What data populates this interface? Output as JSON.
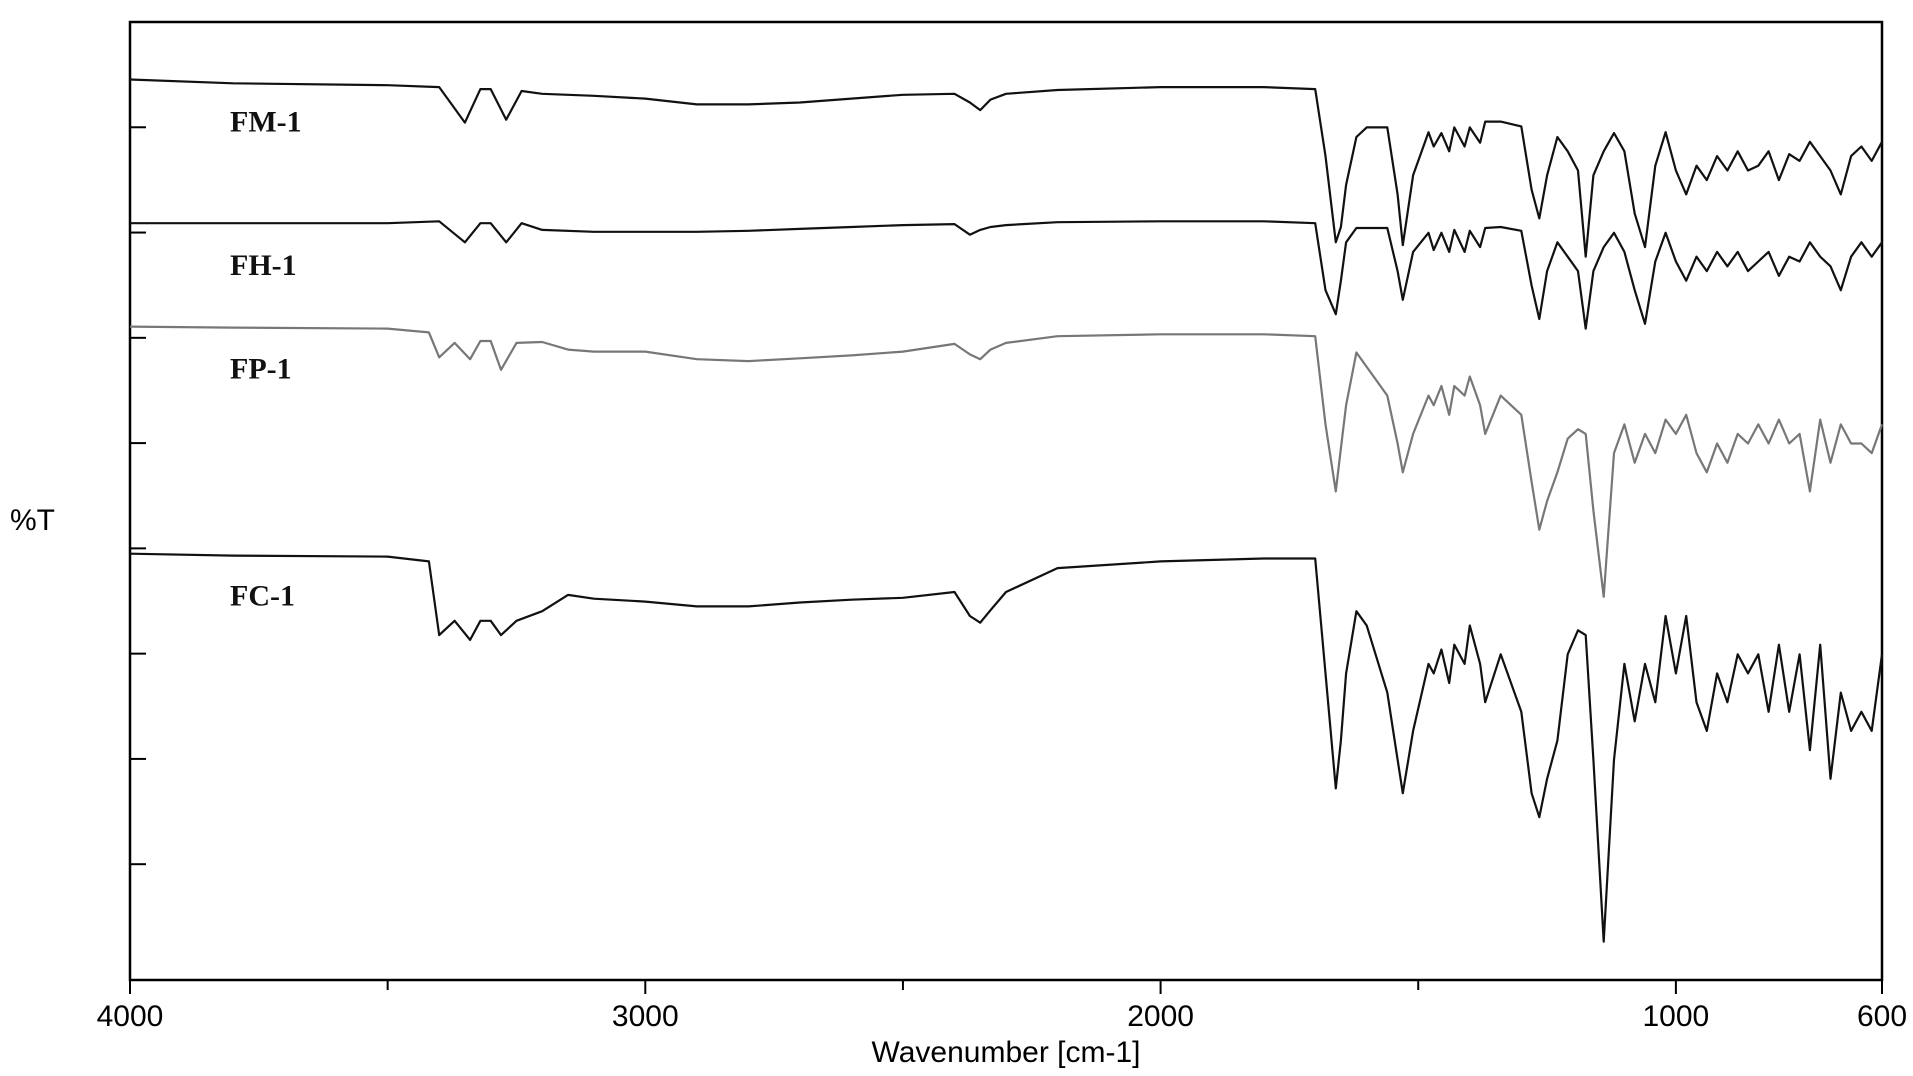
{
  "chart_data": {
    "type": "line",
    "title": "",
    "xlabel": "Wavenumber [cm-1]",
    "ylabel": "%T",
    "xlim": [
      4000,
      600
    ],
    "x_reversed": true,
    "xticks": [
      4000,
      3000,
      2000,
      1000,
      600
    ],
    "x_minor_ticks": [
      3500,
      2500,
      1500
    ],
    "y_scale": "arbitrary, stacked (offset) spectra",
    "ylim": [
      0,
      100
    ],
    "grid": false,
    "series": [
      {
        "name": "FM-1",
        "color": "#111111",
        "x": [
          4000,
          3800,
          3500,
          3400,
          3350,
          3320,
          3300,
          3270,
          3240,
          3200,
          3100,
          3000,
          2900,
          2800,
          2700,
          2600,
          2500,
          2400,
          2370,
          2350,
          2330,
          2300,
          2200,
          2000,
          1800,
          1700,
          1680,
          1660,
          1650,
          1640,
          1620,
          1600,
          1560,
          1540,
          1530,
          1510,
          1480,
          1470,
          1455,
          1440,
          1430,
          1410,
          1400,
          1380,
          1370,
          1340,
          1300,
          1280,
          1265,
          1250,
          1230,
          1210,
          1190,
          1175,
          1160,
          1140,
          1120,
          1100,
          1080,
          1060,
          1040,
          1020,
          1000,
          980,
          960,
          940,
          920,
          900,
          880,
          860,
          840,
          820,
          800,
          780,
          760,
          740,
          720,
          700,
          680,
          660,
          640,
          620,
          600
        ],
        "y": [
          94,
          93.6,
          93.4,
          93.2,
          89.5,
          93,
          93,
          89.8,
          92.8,
          92.5,
          92.3,
          92,
          91.4,
          91.4,
          91.6,
          92,
          92.4,
          92.5,
          91.6,
          90.8,
          91.9,
          92.5,
          92.9,
          93.2,
          93.2,
          93,
          86,
          77,
          78.6,
          83,
          88,
          89,
          89,
          82,
          76.7,
          84,
          88.5,
          87,
          88.4,
          86.5,
          89,
          87,
          89,
          87.4,
          89.6,
          89.6,
          89.1,
          82.5,
          79.5,
          84,
          88,
          86.5,
          84.5,
          75.5,
          84,
          86.5,
          88.4,
          86.5,
          80,
          76.5,
          85,
          88.5,
          84.5,
          82,
          85,
          83.5,
          86,
          84.5,
          86.5,
          84.5,
          85,
          86.5,
          83.5,
          86.2,
          85.5,
          87.5,
          86,
          84.5,
          82,
          86,
          87,
          85.5,
          87.5
        ]
      },
      {
        "name": "FH-1",
        "color": "#111111",
        "x": [
          4000,
          3800,
          3500,
          3400,
          3350,
          3320,
          3300,
          3270,
          3240,
          3200,
          3100,
          3000,
          2900,
          2800,
          2700,
          2600,
          2500,
          2400,
          2370,
          2350,
          2330,
          2300,
          2200,
          2000,
          1800,
          1700,
          1680,
          1660,
          1650,
          1640,
          1620,
          1600,
          1560,
          1540,
          1530,
          1510,
          1480,
          1470,
          1455,
          1440,
          1430,
          1410,
          1400,
          1380,
          1370,
          1340,
          1300,
          1280,
          1265,
          1250,
          1230,
          1210,
          1190,
          1175,
          1160,
          1140,
          1120,
          1100,
          1080,
          1060,
          1040,
          1020,
          1000,
          980,
          960,
          940,
          920,
          900,
          880,
          860,
          840,
          820,
          800,
          780,
          760,
          740,
          720,
          700,
          680,
          660,
          640,
          620,
          600
        ],
        "y": [
          79,
          79,
          79,
          79.2,
          77,
          79,
          79,
          77,
          79,
          78.3,
          78.1,
          78.1,
          78.1,
          78.2,
          78.4,
          78.6,
          78.8,
          78.9,
          77.8,
          78.3,
          78.6,
          78.8,
          79.1,
          79.2,
          79.2,
          79,
          72,
          69.5,
          73,
          77,
          78.5,
          78.5,
          78.5,
          74,
          71,
          76,
          78,
          76.2,
          78,
          76,
          78.3,
          76,
          78.2,
          76.5,
          78.5,
          78.6,
          78.2,
          72.5,
          69,
          74,
          77,
          75.5,
          74,
          68,
          74,
          76.5,
          78,
          76,
          72,
          68.5,
          75,
          78,
          75,
          73,
          75.5,
          74,
          76,
          74.5,
          76,
          74,
          75,
          76,
          73.5,
          75.5,
          75,
          77,
          75.5,
          74.5,
          72,
          75.5,
          77,
          75.5,
          77
        ]
      },
      {
        "name": "FP-1",
        "color": "#777777",
        "x": [
          4000,
          3800,
          3500,
          3420,
          3400,
          3370,
          3340,
          3320,
          3300,
          3280,
          3250,
          3200,
          3150,
          3100,
          3000,
          2900,
          2800,
          2700,
          2600,
          2500,
          2400,
          2370,
          2350,
          2330,
          2300,
          2200,
          2000,
          1800,
          1700,
          1680,
          1660,
          1650,
          1640,
          1620,
          1600,
          1560,
          1540,
          1530,
          1510,
          1480,
          1470,
          1455,
          1440,
          1430,
          1410,
          1400,
          1380,
          1370,
          1340,
          1300,
          1280,
          1265,
          1250,
          1230,
          1210,
          1190,
          1175,
          1160,
          1140,
          1120,
          1100,
          1080,
          1060,
          1040,
          1020,
          1000,
          980,
          960,
          940,
          920,
          900,
          880,
          860,
          840,
          820,
          800,
          780,
          760,
          740,
          720,
          700,
          680,
          660,
          640,
          620,
          600
        ],
        "y": [
          68.2,
          68.1,
          68,
          67.6,
          65,
          66.5,
          64.8,
          66.7,
          66.7,
          63.7,
          66.5,
          66.6,
          65.8,
          65.6,
          65.6,
          64.8,
          64.6,
          64.9,
          65.2,
          65.6,
          66.4,
          65.3,
          64.8,
          65.8,
          66.5,
          67.2,
          67.4,
          67.4,
          67.2,
          58,
          51,
          55.5,
          60,
          65.5,
          64,
          61,
          56,
          53,
          57,
          61,
          60,
          62,
          59,
          62,
          61,
          63,
          60,
          57,
          61,
          59,
          52,
          47,
          50,
          53,
          56.5,
          57.5,
          57,
          49,
          40,
          55,
          58,
          54,
          57,
          55,
          58.5,
          57,
          59,
          55,
          53,
          56,
          54,
          57,
          56,
          58,
          56,
          58.5,
          56,
          57,
          51,
          58.5,
          54,
          58,
          56,
          56,
          55,
          58
        ]
      },
      {
        "name": "FC-1",
        "color": "#111111",
        "x": [
          4000,
          3800,
          3500,
          3420,
          3400,
          3370,
          3340,
          3320,
          3300,
          3280,
          3250,
          3200,
          3150,
          3100,
          3000,
          2900,
          2800,
          2700,
          2600,
          2500,
          2400,
          2370,
          2350,
          2330,
          2300,
          2200,
          2000,
          1800,
          1700,
          1680,
          1660,
          1650,
          1640,
          1620,
          1600,
          1560,
          1540,
          1530,
          1510,
          1480,
          1470,
          1455,
          1440,
          1430,
          1410,
          1400,
          1380,
          1370,
          1340,
          1300,
          1280,
          1265,
          1250,
          1230,
          1210,
          1190,
          1175,
          1160,
          1140,
          1120,
          1100,
          1080,
          1060,
          1040,
          1020,
          1000,
          980,
          960,
          940,
          920,
          900,
          880,
          860,
          840,
          820,
          800,
          780,
          760,
          740,
          720,
          700,
          680,
          660,
          640,
          620,
          600
        ],
        "y": [
          44.5,
          44.3,
          44.2,
          43.7,
          36,
          37.5,
          35.5,
          37.5,
          37.5,
          36,
          37.5,
          38.5,
          40.2,
          39.8,
          39.5,
          39,
          39,
          39.4,
          39.7,
          39.9,
          40.5,
          38,
          37.3,
          38.6,
          40.5,
          43,
          43.7,
          44,
          44,
          32,
          20,
          25,
          32,
          38.5,
          37,
          30,
          23,
          19.5,
          26,
          33,
          32,
          34.5,
          31,
          35,
          33,
          37,
          33,
          29,
          34,
          28,
          19.5,
          17,
          21,
          25,
          34,
          36.5,
          36,
          23,
          4,
          23,
          33,
          27,
          33,
          29,
          38,
          32,
          38,
          29,
          26,
          32,
          29,
          34,
          32,
          34,
          28,
          35,
          28,
          34,
          24,
          35,
          21,
          30,
          26,
          28,
          26,
          34
        ]
      }
    ]
  }
}
